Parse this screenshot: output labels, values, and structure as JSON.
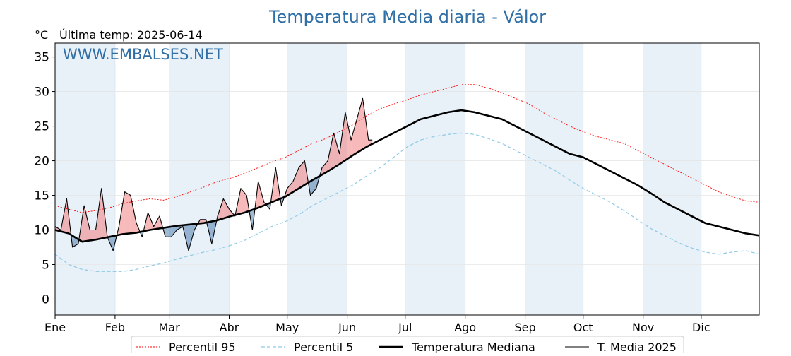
{
  "title": "Temperatura Media diaria - Válor",
  "unit_label": "°C",
  "last_temp_label": "Última temp: 2025-06-14",
  "watermark": "WWW.EMBALSES.NET",
  "colors": {
    "title": "#2f6fa6",
    "watermark": "#2f6fa6",
    "p95": "#ff0000",
    "p5": "#8ecae6",
    "median": "#000000",
    "current": "#000000",
    "above_fill": "#f08080",
    "below_fill": "#4f7fae",
    "month_band": "#e8f0f8"
  },
  "chart_data": {
    "type": "line",
    "x_unit": "day_of_year",
    "xlim": [
      1,
      365
    ],
    "ylim": [
      -2.3,
      37
    ],
    "y_ticks": [
      0,
      5,
      10,
      15,
      20,
      25,
      30,
      35
    ],
    "grid": true,
    "legend_position": "bottom",
    "months": [
      {
        "label": "Ene",
        "day": 1
      },
      {
        "label": "Feb",
        "day": 32
      },
      {
        "label": "Mar",
        "day": 60
      },
      {
        "label": "Abr",
        "day": 91
      },
      {
        "label": "May",
        "day": 121
      },
      {
        "label": "Jun",
        "day": 152
      },
      {
        "label": "Jul",
        "day": 182
      },
      {
        "label": "Ago",
        "day": 213
      },
      {
        "label": "Sep",
        "day": 244
      },
      {
        "label": "Oct",
        "day": 274
      },
      {
        "label": "Nov",
        "day": 305
      },
      {
        "label": "Dic",
        "day": 335
      }
    ],
    "series": [
      {
        "name": "Percentil 95",
        "key": "p95",
        "style": "dotted",
        "x": [
          1,
          8,
          15,
          22,
          29,
          36,
          43,
          50,
          57,
          64,
          71,
          78,
          85,
          92,
          99,
          106,
          113,
          120,
          127,
          134,
          141,
          148,
          155,
          162,
          169,
          176,
          183,
          190,
          197,
          204,
          211,
          218,
          225,
          232,
          239,
          246,
          253,
          260,
          267,
          274,
          281,
          288,
          295,
          302,
          309,
          316,
          323,
          330,
          337,
          344,
          351,
          358,
          365
        ],
        "y": [
          13.5,
          13,
          12.5,
          12.8,
          13.2,
          13.8,
          14.2,
          14.5,
          14.3,
          14.8,
          15.5,
          16.2,
          17,
          17.5,
          18.2,
          19,
          19.8,
          20.5,
          21.5,
          22.5,
          23.2,
          24.2,
          25.2,
          26.5,
          27.5,
          28.2,
          28.8,
          29.5,
          30,
          30.5,
          31,
          31,
          30.5,
          29.8,
          29,
          28.2,
          27,
          26,
          25,
          24.2,
          23.5,
          23,
          22.5,
          21.5,
          20.5,
          19.5,
          18.5,
          17.5,
          16.5,
          15.5,
          14.8,
          14.2,
          14
        ]
      },
      {
        "name": "Percentil 5",
        "key": "p5",
        "style": "dashed",
        "x": [
          1,
          8,
          15,
          22,
          29,
          36,
          43,
          50,
          57,
          64,
          71,
          78,
          85,
          92,
          99,
          106,
          113,
          120,
          127,
          134,
          141,
          148,
          155,
          162,
          169,
          176,
          183,
          190,
          197,
          204,
          211,
          218,
          225,
          232,
          239,
          246,
          253,
          260,
          267,
          274,
          281,
          288,
          295,
          302,
          309,
          316,
          323,
          330,
          337,
          344,
          351,
          358,
          365
        ],
        "y": [
          6.5,
          5,
          4.3,
          4,
          4,
          4,
          4.3,
          4.8,
          5.2,
          5.8,
          6.3,
          6.8,
          7.2,
          7.8,
          8.5,
          9.5,
          10.5,
          11.2,
          12.2,
          13.5,
          14.5,
          15.5,
          16.5,
          17.8,
          19,
          20.5,
          22,
          23,
          23.5,
          23.8,
          24,
          23.8,
          23.2,
          22.5,
          21.5,
          20.5,
          19.5,
          18.5,
          17.2,
          16,
          15,
          14,
          12.8,
          11.5,
          10.2,
          9.2,
          8.2,
          7.4,
          6.8,
          6.5,
          6.8,
          7,
          6.5
        ]
      },
      {
        "name": "Temperatura Mediana",
        "key": "median",
        "style": "solid-thick",
        "x": [
          1,
          8,
          15,
          22,
          29,
          36,
          43,
          50,
          57,
          64,
          71,
          78,
          85,
          92,
          99,
          106,
          113,
          120,
          127,
          134,
          141,
          148,
          155,
          162,
          169,
          176,
          183,
          190,
          197,
          204,
          211,
          218,
          225,
          232,
          239,
          246,
          253,
          260,
          267,
          274,
          281,
          288,
          295,
          302,
          309,
          316,
          323,
          330,
          337,
          344,
          351,
          358,
          365
        ],
        "y": [
          10,
          9.5,
          8.3,
          8.6,
          9,
          9.4,
          9.6,
          10,
          10.3,
          10.6,
          10.8,
          11,
          11.4,
          12,
          12.5,
          13.2,
          14,
          14.8,
          16,
          17.2,
          18.3,
          19.5,
          20.8,
          22,
          23,
          24,
          25,
          26,
          26.5,
          27,
          27.3,
          27,
          26.5,
          26,
          25,
          24,
          23,
          22,
          21,
          20.5,
          19.5,
          18.5,
          17.5,
          16.5,
          15.3,
          14,
          13,
          12,
          11,
          10.5,
          10,
          9.5,
          9.2
        ]
      },
      {
        "name": "T. Media 2025",
        "key": "current",
        "style": "solid-thin",
        "x": [
          1,
          4,
          7,
          10,
          13,
          16,
          19,
          22,
          25,
          28,
          31,
          34,
          37,
          40,
          43,
          46,
          49,
          52,
          55,
          58,
          61,
          64,
          67,
          70,
          73,
          76,
          79,
          82,
          85,
          88,
          91,
          94,
          97,
          100,
          103,
          106,
          109,
          112,
          115,
          118,
          121,
          124,
          127,
          130,
          133,
          136,
          139,
          142,
          145,
          148,
          151,
          154,
          157,
          160,
          163,
          165
        ],
        "y": [
          10.5,
          10,
          14.5,
          7.5,
          8,
          13.5,
          10,
          10,
          16,
          9,
          7,
          10.5,
          15.5,
          15,
          11,
          9,
          12.5,
          10.5,
          12,
          9,
          9,
          10,
          10.5,
          7,
          10,
          11.5,
          11.5,
          8,
          12,
          14.5,
          13,
          12,
          16,
          15,
          10,
          17,
          14,
          13,
          19,
          13.5,
          16,
          17,
          19,
          20,
          15,
          16,
          19,
          20,
          24,
          21,
          27,
          23,
          26,
          29,
          23,
          23
        ]
      }
    ]
  },
  "legend": [
    {
      "label": "Percentil 95",
      "key": "p95"
    },
    {
      "label": "Percentil 5",
      "key": "p5"
    },
    {
      "label": "Temperatura Mediana",
      "key": "median"
    },
    {
      "label": "T. Media 2025",
      "key": "current"
    }
  ]
}
